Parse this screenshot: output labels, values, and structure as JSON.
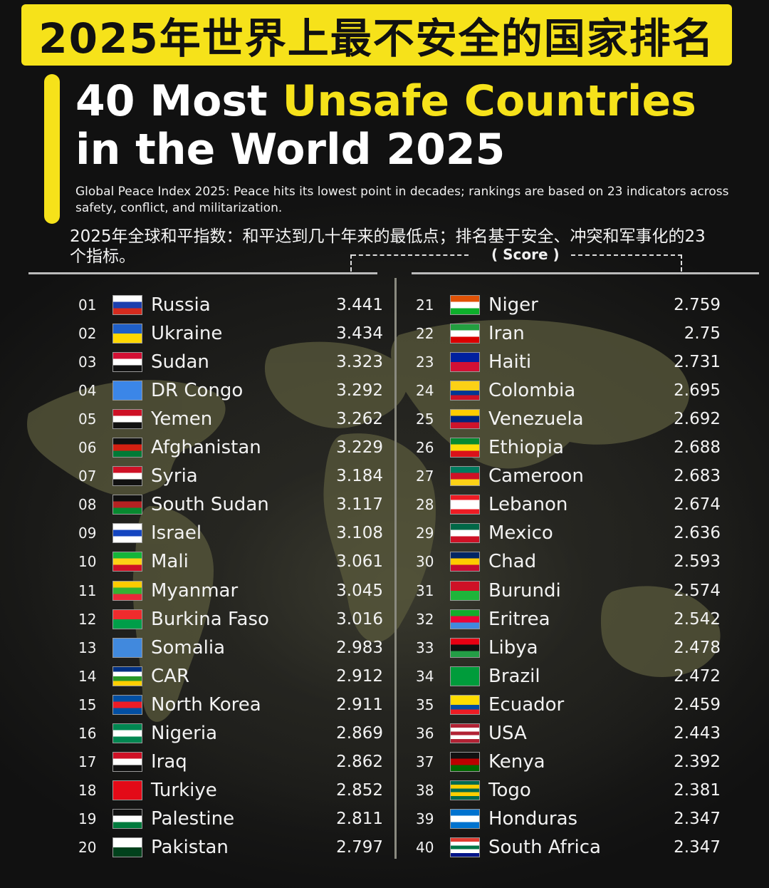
{
  "header": {
    "banner_cn": "2025年世界上最不安全的国家排名",
    "title_line1_prefix": "40 Most ",
    "title_line1_highlight": "Unsafe Countries",
    "title_line2": "in the World 2025",
    "subtitle_en": "Global Peace Index 2025: Peace hits its lowest point in decades; rankings are based on 23 indicators across safety, conflict, and militarization.",
    "subtitle_cn": "2025年全球和平指数：和平达到几十年来的最低点；排名基于安全、冲突和军事化的23个指标。",
    "score_label": "( Score )"
  },
  "colors": {
    "accent": "#f6e21a",
    "background": "#1a1a18",
    "map": "#5a5a3c"
  },
  "rankings": [
    {
      "rank": "01",
      "country": "Russia",
      "score": "3.441",
      "flag": [
        "#ffffff",
        "#1c3fae",
        "#d52b1e"
      ]
    },
    {
      "rank": "02",
      "country": "Ukraine",
      "score": "3.434",
      "flag": [
        "#1f5fc7",
        "#ffd700"
      ]
    },
    {
      "rank": "03",
      "country": "Sudan",
      "score": "3.323",
      "flag": [
        "#d21034",
        "#ffffff",
        "#111111"
      ]
    },
    {
      "rank": "04",
      "country": "DR Congo",
      "score": "3.292",
      "flag": [
        "#3b86e8"
      ]
    },
    {
      "rank": "05",
      "country": "Yemen",
      "score": "3.262",
      "flag": [
        "#ce1126",
        "#ffffff",
        "#111111"
      ]
    },
    {
      "rank": "06",
      "country": "Afghanistan",
      "score": "3.229",
      "flag": [
        "#111111",
        "#d32011",
        "#007a36"
      ]
    },
    {
      "rank": "07",
      "country": "Syria",
      "score": "3.184",
      "flag": [
        "#ce1126",
        "#ffffff",
        "#111111"
      ]
    },
    {
      "rank": "08",
      "country": "South Sudan",
      "score": "3.117",
      "flag": [
        "#111111",
        "#b52222",
        "#078930"
      ]
    },
    {
      "rank": "09",
      "country": "Israel",
      "score": "3.108",
      "flag": [
        "#ffffff",
        "#1546c0",
        "#ffffff"
      ]
    },
    {
      "rank": "10",
      "country": "Mali",
      "score": "3.061",
      "flag": [
        "#14b53a",
        "#fcd116",
        "#ce1126"
      ]
    },
    {
      "rank": "11",
      "country": "Myanmar",
      "score": "3.045",
      "flag": [
        "#fecb00",
        "#34b233",
        "#ea2839"
      ]
    },
    {
      "rank": "12",
      "country": "Burkina Faso",
      "score": "3.016",
      "flag": [
        "#ef2b2d",
        "#009e49"
      ]
    },
    {
      "rank": "13",
      "country": "Somalia",
      "score": "2.983",
      "flag": [
        "#4189dd"
      ]
    },
    {
      "rank": "14",
      "country": "CAR",
      "score": "2.912",
      "flag": [
        "#003082",
        "#ffffff",
        "#289728",
        "#ffce00"
      ]
    },
    {
      "rank": "15",
      "country": "North Korea",
      "score": "2.911",
      "flag": [
        "#024fa2",
        "#ed1c27",
        "#024fa2"
      ]
    },
    {
      "rank": "16",
      "country": "Nigeria",
      "score": "2.869",
      "flag": [
        "#008751",
        "#ffffff",
        "#008751"
      ]
    },
    {
      "rank": "17",
      "country": "Iraq",
      "score": "2.862",
      "flag": [
        "#ce1126",
        "#ffffff",
        "#111111"
      ]
    },
    {
      "rank": "18",
      "country": "Turkiye",
      "score": "2.852",
      "flag": [
        "#e30a17"
      ]
    },
    {
      "rank": "19",
      "country": "Palestine",
      "score": "2.811",
      "flag": [
        "#111111",
        "#ffffff",
        "#007a3d"
      ]
    },
    {
      "rank": "20",
      "country": "Pakistan",
      "score": "2.797",
      "flag": [
        "#ffffff",
        "#01411c"
      ]
    },
    {
      "rank": "21",
      "country": "Niger",
      "score": "2.759",
      "flag": [
        "#e05206",
        "#ffffff",
        "#0db02b"
      ]
    },
    {
      "rank": "22",
      "country": "Iran",
      "score": "2.75",
      "flag": [
        "#239f40",
        "#ffffff",
        "#da0000"
      ]
    },
    {
      "rank": "23",
      "country": "Haiti",
      "score": "2.731",
      "flag": [
        "#00209f",
        "#d21034"
      ]
    },
    {
      "rank": "24",
      "country": "Colombia",
      "score": "2.695",
      "flag": [
        "#fcd116",
        "#fcd116",
        "#003893",
        "#ce1126"
      ]
    },
    {
      "rank": "25",
      "country": "Venezuela",
      "score": "2.692",
      "flag": [
        "#ffcc00",
        "#00247d",
        "#cf142b"
      ]
    },
    {
      "rank": "26",
      "country": "Ethiopia",
      "score": "2.688",
      "flag": [
        "#078930",
        "#fcdd09",
        "#da121a"
      ]
    },
    {
      "rank": "27",
      "country": "Cameroon",
      "score": "2.683",
      "flag": [
        "#007a5e",
        "#ce1126",
        "#fcd116"
      ]
    },
    {
      "rank": "28",
      "country": "Lebanon",
      "score": "2.674",
      "flag": [
        "#ed1c24",
        "#ffffff",
        "#ffffff",
        "#ed1c24"
      ]
    },
    {
      "rank": "29",
      "country": "Mexico",
      "score": "2.636",
      "flag": [
        "#006847",
        "#ffffff",
        "#ce1126"
      ]
    },
    {
      "rank": "30",
      "country": "Chad",
      "score": "2.593",
      "flag": [
        "#002664",
        "#fecb00",
        "#c60c30"
      ]
    },
    {
      "rank": "31",
      "country": "Burundi",
      "score": "2.574",
      "flag": [
        "#ce1126",
        "#1eb53a"
      ]
    },
    {
      "rank": "32",
      "country": "Eritrea",
      "score": "2.542",
      "flag": [
        "#12ad2b",
        "#ea0437",
        "#4189dd"
      ]
    },
    {
      "rank": "33",
      "country": "Libya",
      "score": "2.478",
      "flag": [
        "#e70013",
        "#111111",
        "#239e46"
      ]
    },
    {
      "rank": "34",
      "country": "Brazil",
      "score": "2.472",
      "flag": [
        "#009c3b"
      ]
    },
    {
      "rank": "35",
      "country": "Ecuador",
      "score": "2.459",
      "flag": [
        "#ffdd00",
        "#ffdd00",
        "#034ea2",
        "#ed1c24"
      ]
    },
    {
      "rank": "36",
      "country": "USA",
      "score": "2.443",
      "flag": [
        "#b22234",
        "#ffffff",
        "#b22234",
        "#ffffff",
        "#b22234"
      ]
    },
    {
      "rank": "37",
      "country": "Kenya",
      "score": "2.392",
      "flag": [
        "#111111",
        "#bb0000",
        "#006600"
      ]
    },
    {
      "rank": "38",
      "country": "Togo",
      "score": "2.381",
      "flag": [
        "#006a4e",
        "#ffce00",
        "#006a4e",
        "#ffce00",
        "#006a4e"
      ]
    },
    {
      "rank": "39",
      "country": "Honduras",
      "score": "2.347",
      "flag": [
        "#0073cf",
        "#ffffff",
        "#0073cf"
      ]
    },
    {
      "rank": "40",
      "country": "South Africa",
      "score": "2.347",
      "flag": [
        "#e03c31",
        "#ffffff",
        "#007749",
        "#ffffff",
        "#001489"
      ]
    }
  ]
}
